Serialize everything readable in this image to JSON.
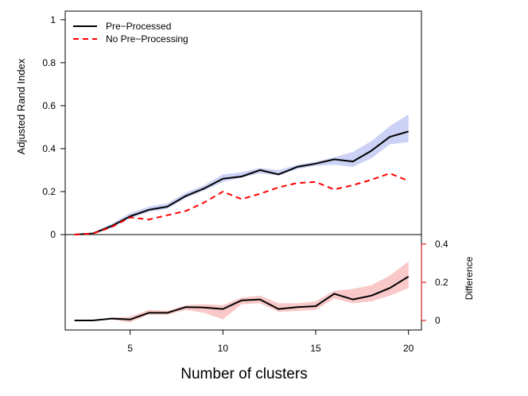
{
  "chart_data": {
    "type": "line",
    "xlabel": "Number of clusters",
    "x_ticks": [
      5,
      10,
      15,
      20
    ],
    "x": [
      2,
      3,
      4,
      5,
      6,
      7,
      8,
      9,
      10,
      11,
      12,
      13,
      14,
      15,
      16,
      17,
      18,
      19,
      20
    ],
    "xlim": [
      1.5,
      20.7
    ],
    "legend_position": "top-left",
    "colors": {
      "pre": "#000000",
      "no_pre": "#ff0000",
      "top_band": "#ccd2f5",
      "bottom_band": "#f9c8c8",
      "right_axis": "#dd1e1e"
    },
    "top_panel": {
      "ylabel": "Adjusted Rand Index",
      "ylim": [
        0,
        1.04
      ],
      "y_ticks": [
        0,
        0.2,
        0.4,
        0.6,
        0.8,
        1
      ],
      "y_tick_labels": [
        "0",
        "0.2",
        "0.4",
        "0.6",
        "0.8",
        "1"
      ],
      "series": [
        {
          "name": "Pre−Processed",
          "style": "solid",
          "values": [
            0.0,
            0.005,
            0.04,
            0.085,
            0.115,
            0.13,
            0.18,
            0.215,
            0.26,
            0.27,
            0.3,
            0.28,
            0.315,
            0.33,
            0.35,
            0.34,
            0.39,
            0.455,
            0.48
          ],
          "band_lower": [
            0.0,
            0.0,
            0.03,
            0.075,
            0.105,
            0.12,
            0.17,
            0.205,
            0.245,
            0.265,
            0.285,
            0.275,
            0.305,
            0.32,
            0.325,
            0.315,
            0.355,
            0.42,
            0.43
          ],
          "band_upper": [
            0.0,
            0.01,
            0.05,
            0.1,
            0.13,
            0.145,
            0.195,
            0.23,
            0.28,
            0.29,
            0.31,
            0.3,
            0.325,
            0.34,
            0.36,
            0.385,
            0.435,
            0.505,
            0.56
          ]
        },
        {
          "name": "No Pre−Processing",
          "style": "dashed",
          "values": [
            0.0,
            0.005,
            0.035,
            0.08,
            0.07,
            0.09,
            0.11,
            0.15,
            0.2,
            0.165,
            0.19,
            0.22,
            0.24,
            0.245,
            0.21,
            0.23,
            0.255,
            0.285,
            0.25
          ]
        }
      ]
    },
    "bottom_panel": {
      "ylabel": "Difference",
      "ylim": [
        -0.05,
        0.45
      ],
      "y_ticks": [
        0,
        0.2,
        0.4
      ],
      "y_tick_labels": [
        "0",
        "0.2",
        "0.4"
      ],
      "series": [
        {
          "name": "",
          "style": "solid",
          "values": [
            0.0,
            0.0,
            0.01,
            0.005,
            0.04,
            0.04,
            0.07,
            0.068,
            0.06,
            0.105,
            0.11,
            0.06,
            0.07,
            0.075,
            0.14,
            0.11,
            0.13,
            0.17,
            0.23
          ],
          "band_lower": [
            0.0,
            0.0,
            0.005,
            -0.01,
            0.03,
            0.03,
            0.055,
            0.04,
            0.005,
            0.085,
            0.09,
            0.045,
            0.05,
            0.055,
            0.115,
            0.09,
            0.1,
            0.13,
            0.17
          ],
          "band_upper": [
            0.0,
            0.0,
            0.015,
            0.02,
            0.055,
            0.05,
            0.08,
            0.085,
            0.08,
            0.12,
            0.13,
            0.09,
            0.09,
            0.1,
            0.155,
            0.165,
            0.185,
            0.235,
            0.31
          ]
        }
      ]
    }
  }
}
